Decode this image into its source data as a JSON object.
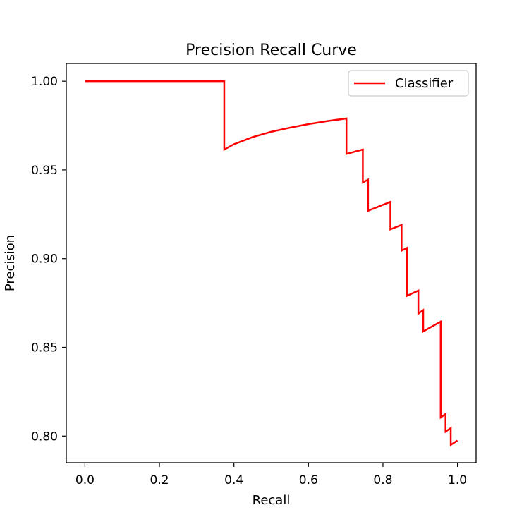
{
  "chart_data": {
    "type": "line",
    "title": "Precision Recall Curve",
    "xlabel": "Recall",
    "ylabel": "Precision",
    "xlim": [
      -0.05,
      1.05
    ],
    "ylim": [
      0.785,
      1.01
    ],
    "xticks": [
      0.0,
      0.2,
      0.4,
      0.6,
      0.8,
      1.0
    ],
    "xtick_labels": [
      "0.0",
      "0.2",
      "0.4",
      "0.6",
      "0.8",
      "1.0"
    ],
    "yticks": [
      0.8,
      0.85,
      0.9,
      0.95,
      1.0
    ],
    "ytick_labels": [
      "0.80",
      "0.85",
      "0.90",
      "0.95",
      "1.00"
    ],
    "grid": false,
    "legend": "top-right",
    "series": [
      {
        "name": "Classifier",
        "color": "#ff0000",
        "x": [
          0.0,
          0.374,
          0.374,
          0.4,
          0.45,
          0.5,
          0.55,
          0.6,
          0.65,
          0.702,
          0.702,
          0.746,
          0.746,
          0.76,
          0.76,
          0.82,
          0.82,
          0.85,
          0.85,
          0.864,
          0.864,
          0.895,
          0.895,
          0.908,
          0.908,
          0.955,
          0.955,
          0.968,
          0.968,
          0.982,
          0.982,
          1.0
        ],
        "y": [
          1.0,
          1.0,
          0.9615,
          0.9645,
          0.9685,
          0.9715,
          0.9738,
          0.9758,
          0.9775,
          0.979,
          0.959,
          0.9615,
          0.943,
          0.9445,
          0.927,
          0.932,
          0.9165,
          0.919,
          0.9045,
          0.906,
          0.879,
          0.882,
          0.869,
          0.871,
          0.859,
          0.8645,
          0.8105,
          0.8125,
          0.8025,
          0.8045,
          0.795,
          0.7975
        ]
      }
    ]
  }
}
